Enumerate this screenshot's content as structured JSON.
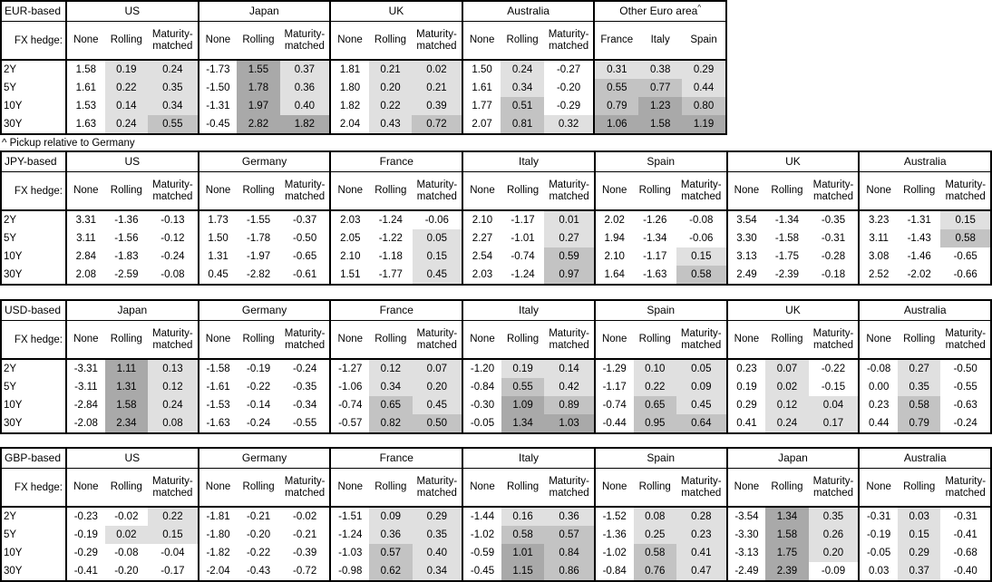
{
  "footnote": "^ Pickup relative to Germany",
  "fx_hedge_label": "FX hedge:",
  "row_labels": [
    "2Y",
    "5Y",
    "10Y",
    "30Y"
  ],
  "default_columns": [
    "None",
    "Rolling",
    "Maturity-matched"
  ],
  "shading": {
    "rule": "hedged columns only: value<0 white, 0 to <0.5 light, 0.5 to <1.0 medium, >=1.0 dark",
    "thresholds": {
      "light_below": 0.5,
      "medium_below": 1.0
    },
    "colors": {
      "light": "#e0e0e0",
      "medium": "#c3c3c3",
      "dark": "#a9a9a9",
      "none": "#ffffff",
      "border": "#000000"
    }
  },
  "tables": [
    {
      "id": "eur",
      "base": "EUR-based",
      "full_width": false,
      "groups": [
        {
          "country": "US",
          "rows": [
            [
              "1.58",
              "0.19",
              "0.24"
            ],
            [
              "1.61",
              "0.22",
              "0.35"
            ],
            [
              "1.53",
              "0.14",
              "0.34"
            ],
            [
              "1.63",
              "0.24",
              "0.55"
            ]
          ]
        },
        {
          "country": "Japan",
          "rows": [
            [
              "-1.73",
              "1.55",
              "0.37"
            ],
            [
              "-1.50",
              "1.78",
              "0.36"
            ],
            [
              "-1.31",
              "1.97",
              "0.40"
            ],
            [
              "-0.45",
              "2.82",
              "1.82"
            ]
          ]
        },
        {
          "country": "UK",
          "rows": [
            [
              "1.81",
              "0.21",
              "0.02"
            ],
            [
              "1.80",
              "0.20",
              "0.21"
            ],
            [
              "1.82",
              "0.22",
              "0.39"
            ],
            [
              "2.04",
              "0.43",
              "0.72"
            ]
          ]
        },
        {
          "country": "Australia",
          "rows": [
            [
              "1.50",
              "0.24",
              "-0.27"
            ],
            [
              "1.61",
              "0.34",
              "-0.20"
            ],
            [
              "1.77",
              "0.51",
              "-0.29"
            ],
            [
              "2.07",
              "0.81",
              "0.32"
            ]
          ]
        },
        {
          "country": "Other Euro area",
          "sup": "^",
          "columns": [
            "France",
            "Italy",
            "Spain"
          ],
          "equal_cols": true,
          "shade_all": true,
          "rows": [
            [
              "0.31",
              "0.38",
              "0.29"
            ],
            [
              "0.55",
              "0.77",
              "0.44"
            ],
            [
              "0.79",
              "1.23",
              "0.80"
            ],
            [
              "1.06",
              "1.58",
              "1.19"
            ]
          ]
        }
      ]
    },
    {
      "id": "jpy",
      "base": "JPY-based",
      "full_width": true,
      "groups": [
        {
          "country": "US",
          "rows": [
            [
              "3.31",
              "-1.36",
              "-0.13"
            ],
            [
              "3.11",
              "-1.56",
              "-0.12"
            ],
            [
              "2.84",
              "-1.83",
              "-0.24"
            ],
            [
              "2.08",
              "-2.59",
              "-0.08"
            ]
          ]
        },
        {
          "country": "Germany",
          "rows": [
            [
              "1.73",
              "-1.55",
              "-0.37"
            ],
            [
              "1.50",
              "-1.78",
              "-0.50"
            ],
            [
              "1.31",
              "-1.97",
              "-0.65"
            ],
            [
              "0.45",
              "-2.82",
              "-0.61"
            ]
          ]
        },
        {
          "country": "France",
          "rows": [
            [
              "2.03",
              "-1.24",
              "-0.06"
            ],
            [
              "2.05",
              "-1.22",
              "0.05"
            ],
            [
              "2.10",
              "-1.18",
              "0.15"
            ],
            [
              "1.51",
              "-1.77",
              "0.45"
            ]
          ]
        },
        {
          "country": "Italy",
          "rows": [
            [
              "2.10",
              "-1.17",
              "0.01"
            ],
            [
              "2.27",
              "-1.01",
              "0.27"
            ],
            [
              "2.54",
              "-0.74",
              "0.59"
            ],
            [
              "2.03",
              "-1.24",
              "0.97"
            ]
          ]
        },
        {
          "country": "Spain",
          "rows": [
            [
              "2.02",
              "-1.26",
              "-0.08"
            ],
            [
              "1.94",
              "-1.34",
              "-0.06"
            ],
            [
              "2.10",
              "-1.17",
              "0.15"
            ],
            [
              "1.64",
              "-1.63",
              "0.58"
            ]
          ]
        },
        {
          "country": "UK",
          "rows": [
            [
              "3.54",
              "-1.34",
              "-0.35"
            ],
            [
              "3.30",
              "-1.58",
              "-0.31"
            ],
            [
              "3.13",
              "-1.75",
              "-0.28"
            ],
            [
              "2.49",
              "-2.39",
              "-0.18"
            ]
          ]
        },
        {
          "country": "Australia",
          "rows": [
            [
              "3.23",
              "-1.31",
              "0.15"
            ],
            [
              "3.11",
              "-1.43",
              "0.58"
            ],
            [
              "3.08",
              "-1.46",
              "-0.65"
            ],
            [
              "2.52",
              "-2.02",
              "-0.66"
            ]
          ]
        }
      ]
    },
    {
      "id": "usd",
      "base": "USD-based",
      "full_width": true,
      "groups": [
        {
          "country": "Japan",
          "rows": [
            [
              "-3.31",
              "1.11",
              "0.13"
            ],
            [
              "-3.11",
              "1.31",
              "0.12"
            ],
            [
              "-2.84",
              "1.58",
              "0.24"
            ],
            [
              "-2.08",
              "2.34",
              "0.08"
            ]
          ]
        },
        {
          "country": "Germany",
          "rows": [
            [
              "-1.58",
              "-0.19",
              "-0.24"
            ],
            [
              "-1.61",
              "-0.22",
              "-0.35"
            ],
            [
              "-1.53",
              "-0.14",
              "-0.34"
            ],
            [
              "-1.63",
              "-0.24",
              "-0.55"
            ]
          ]
        },
        {
          "country": "France",
          "rows": [
            [
              "-1.27",
              "0.12",
              "0.07"
            ],
            [
              "-1.06",
              "0.34",
              "0.20"
            ],
            [
              "-0.74",
              "0.65",
              "0.45"
            ],
            [
              "-0.57",
              "0.82",
              "0.50"
            ]
          ]
        },
        {
          "country": "Italy",
          "rows": [
            [
              "-1.20",
              "0.19",
              "0.14"
            ],
            [
              "-0.84",
              "0.55",
              "0.42"
            ],
            [
              "-0.30",
              "1.09",
              "0.89"
            ],
            [
              "-0.05",
              "1.34",
              "1.03"
            ]
          ]
        },
        {
          "country": "Spain",
          "rows": [
            [
              "-1.29",
              "0.10",
              "0.05"
            ],
            [
              "-1.17",
              "0.22",
              "0.09"
            ],
            [
              "-0.74",
              "0.65",
              "0.45"
            ],
            [
              "-0.44",
              "0.95",
              "0.64"
            ]
          ]
        },
        {
          "country": "UK",
          "rows": [
            [
              "0.23",
              "0.07",
              "-0.22"
            ],
            [
              "0.19",
              "0.02",
              "-0.15"
            ],
            [
              "0.29",
              "0.12",
              "0.04"
            ],
            [
              "0.41",
              "0.24",
              "0.17"
            ]
          ]
        },
        {
          "country": "Australia",
          "rows": [
            [
              "-0.08",
              "0.27",
              "-0.50"
            ],
            [
              "0.00",
              "0.35",
              "-0.55"
            ],
            [
              "0.23",
              "0.58",
              "-0.63"
            ],
            [
              "0.44",
              "0.79",
              "-0.24"
            ]
          ]
        }
      ]
    },
    {
      "id": "gbp",
      "base": "GBP-based",
      "full_width": true,
      "groups": [
        {
          "country": "US",
          "rows": [
            [
              "-0.23",
              "-0.02",
              "0.22"
            ],
            [
              "-0.19",
              "0.02",
              "0.15"
            ],
            [
              "-0.29",
              "-0.08",
              "-0.04"
            ],
            [
              "-0.41",
              "-0.20",
              "-0.17"
            ]
          ]
        },
        {
          "country": "Germany",
          "rows": [
            [
              "-1.81",
              "-0.21",
              "-0.02"
            ],
            [
              "-1.80",
              "-0.20",
              "-0.21"
            ],
            [
              "-1.82",
              "-0.22",
              "-0.39"
            ],
            [
              "-2.04",
              "-0.43",
              "-0.72"
            ]
          ]
        },
        {
          "country": "France",
          "rows": [
            [
              "-1.51",
              "0.09",
              "0.29"
            ],
            [
              "-1.24",
              "0.36",
              "0.35"
            ],
            [
              "-1.03",
              "0.57",
              "0.40"
            ],
            [
              "-0.98",
              "0.62",
              "0.34"
            ]
          ]
        },
        {
          "country": "Italy",
          "rows": [
            [
              "-1.44",
              "0.16",
              "0.36"
            ],
            [
              "-1.02",
              "0.58",
              "0.57"
            ],
            [
              "-0.59",
              "1.01",
              "0.84"
            ],
            [
              "-0.45",
              "1.15",
              "0.86"
            ]
          ]
        },
        {
          "country": "Spain",
          "rows": [
            [
              "-1.52",
              "0.08",
              "0.28"
            ],
            [
              "-1.36",
              "0.25",
              "0.23"
            ],
            [
              "-1.02",
              "0.58",
              "0.41"
            ],
            [
              "-0.84",
              "0.76",
              "0.47"
            ]
          ]
        },
        {
          "country": "Japan",
          "rows": [
            [
              "-3.54",
              "1.34",
              "0.35"
            ],
            [
              "-3.30",
              "1.58",
              "0.26"
            ],
            [
              "-3.13",
              "1.75",
              "0.20"
            ],
            [
              "-2.49",
              "2.39",
              "-0.09"
            ]
          ]
        },
        {
          "country": "Australia",
          "rows": [
            [
              "-0.31",
              "0.03",
              "-0.31"
            ],
            [
              "-0.19",
              "0.15",
              "-0.41"
            ],
            [
              "-0.05",
              "0.29",
              "-0.68"
            ],
            [
              "0.03",
              "0.37",
              "-0.40"
            ]
          ]
        }
      ]
    }
  ]
}
